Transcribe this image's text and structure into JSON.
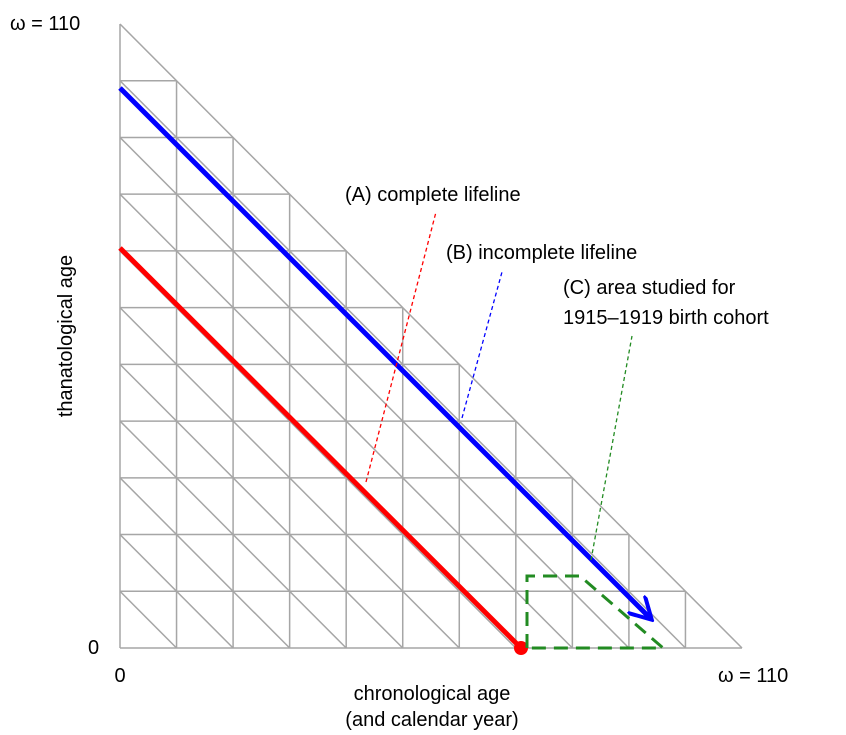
{
  "axes": {
    "y_top_label": "ω = 110",
    "y_zero_label": "0",
    "x_zero_label": "0",
    "x_end_label": "ω = 110",
    "x_title": [
      "chronological age",
      "(and calendar year)"
    ],
    "y_title": "thanatological age"
  },
  "annotations": {
    "a": "(A) complete lifeline",
    "b": "(B) incomplete lifeline",
    "c": [
      "(C) area studied for",
      "1915–1919 birth cohort"
    ]
  }
}
